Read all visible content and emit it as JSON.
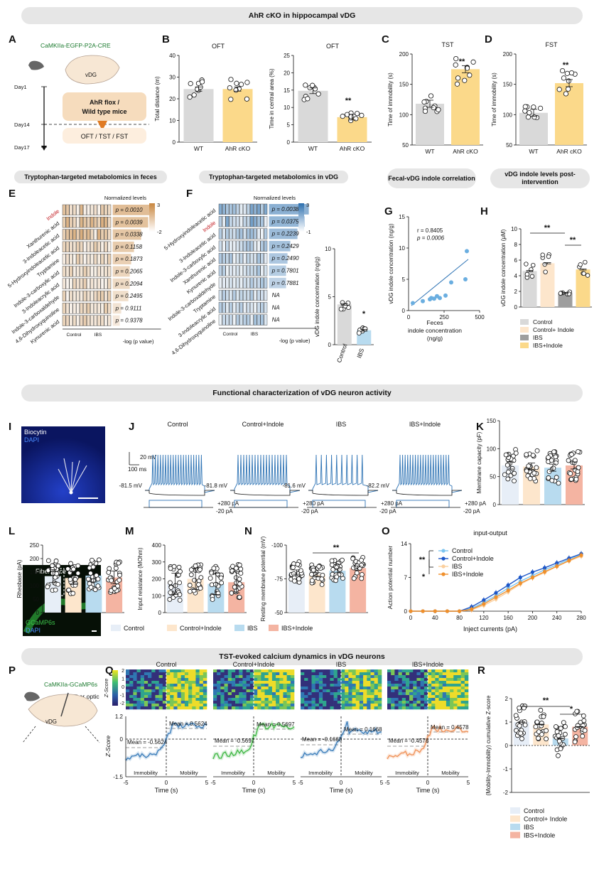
{
  "banners": {
    "b1": "AhR cKO in hippocampal vDG",
    "b2": "Functional characterization of vDG neuron activity",
    "b3": "TST-evoked calcium dynamics in vDG neurons"
  },
  "pills": {
    "e": "Tryptophan-targeted metabolomics in feces",
    "f": "Tryptophan-targeted metabolomics in vDG",
    "g": "Fecal-vDG indole correlation",
    "h": "vDG indole levels post-intervention"
  },
  "panel_labels": [
    "A",
    "B",
    "C",
    "D",
    "E",
    "F",
    "G",
    "H",
    "I",
    "J",
    "K",
    "L",
    "M",
    "N",
    "O",
    "P",
    "Q",
    "R"
  ],
  "panel_a": {
    "construct": "CaMKIIa-EGFP-P2A-CRE",
    "region": "vDG",
    "day1": "Day1",
    "day14": "Day14",
    "day17": "Day17",
    "box1_line1": "AhR flox /",
    "box1_line2": "Wild type mice",
    "box2": "OFT / TST / FST"
  },
  "panel_p": {
    "construct": "CaMKIIa-GCaMP6s",
    "fiber": "Fiber optic",
    "region": "vDG",
    "trace": "Fiber trace",
    "stain1": "GCaMP6s",
    "stain2": "DAPI"
  },
  "panel_i": {
    "stain1": "Biocytin",
    "stain2": "DAPI"
  },
  "colors": {
    "control": "#d9d9d9",
    "ahr": "#fbd98a",
    "ctrl_light": "#e7eef7",
    "ctrl_indole": "#fde6cc",
    "ibs": "#b8dbef",
    "ibs_indole": "#f4b4a2",
    "blue": "#2f74b5",
    "orange": "#e8892e",
    "feces_heat": "#c8873f",
    "vdg_heat": "#2c6fae"
  },
  "chart_data": [
    {
      "id": "B1",
      "type": "bar",
      "title": "OFT",
      "ylabel": "Total distance (m)",
      "ylim": [
        0,
        40
      ],
      "ticks": [
        0,
        10,
        20,
        30,
        40
      ],
      "categories": [
        "WT",
        "AhR cKO"
      ],
      "values": [
        24.5,
        24.5
      ],
      "sig": ""
    },
    {
      "id": "B2",
      "type": "bar",
      "title": "OFT",
      "ylabel": "Time in central area (%)",
      "ylim": [
        0,
        25
      ],
      "ticks": [
        0,
        5,
        10,
        15,
        20,
        25
      ],
      "categories": [
        "WT",
        "AhR cKO"
      ],
      "values": [
        14.8,
        7.2
      ],
      "sig": "**"
    },
    {
      "id": "C",
      "type": "bar",
      "title": "TST",
      "ylabel": "Time of immobility (s)",
      "ylim": [
        50,
        200
      ],
      "ticks": [
        50,
        100,
        150,
        200
      ],
      "categories": [
        "WT",
        "AhR cKO"
      ],
      "values": [
        118,
        175
      ],
      "sig": "**"
    },
    {
      "id": "D",
      "type": "bar",
      "title": "FST",
      "ylabel": "Time of immobility (s)",
      "ylim": [
        50,
        200
      ],
      "ticks": [
        50,
        100,
        150,
        200
      ],
      "categories": [
        "WT",
        "AhR cKO"
      ],
      "values": [
        103,
        152
      ],
      "sig": "**"
    },
    {
      "id": "E",
      "type": "heatmap",
      "colorbar_title": "Normalized levels",
      "colorbar_max": "3",
      "colorbar_min": "-2",
      "rows": [
        "Indole",
        "Xanthurenic acid",
        "3-Indoleacetic acid",
        "5-Hydroxyindoleacetic acid",
        "Tryptamine",
        "Indole-3-carboxylic acid",
        "3-Indoleacrylic acid",
        "Indole-3-carboxaldehyde",
        "4,6-Dihydroxyquinoline",
        "Kynurenic acid"
      ],
      "pvalues": [
        "p = 0.0010",
        "p = 0.0039",
        "p = 0.0338",
        "p = 0.1158",
        "p = 0.1873",
        "p = 0.2065",
        "p = 0.2094",
        "p = 0.2495",
        "p = 0.9111",
        "p = 0.9378"
      ],
      "xlabel": "-log (p value)",
      "groups": [
        "Control",
        "IBS"
      ]
    },
    {
      "id": "F",
      "type": "heatmap",
      "colorbar_title": "Normalized levels",
      "colorbar_max": "3",
      "colorbar_min": "-1",
      "rows": [
        "5-Hydroxyindoleacetic acid",
        "Indole",
        "3-Indoleacetic acid",
        "Indole-3-carboxylic acid",
        "Xanthurenic acid",
        "Kynurenic acid",
        "Indole-3-carboxaldehyde",
        "Tryptamine",
        "3-Indoleacrylic acid",
        "4,6-Dihydroxyquinoline"
      ],
      "pvalues": [
        "p = 0.0038",
        "p = 0.0375",
        "p = 0.2239",
        "p = 0.2429",
        "p = 0.2490",
        "p = 0.7801",
        "p = 0.7881",
        "NA",
        "NA",
        "NA"
      ],
      "xlabel": "-log (p value)",
      "groups": [
        "Control",
        "IBS"
      ]
    },
    {
      "id": "F2",
      "type": "bar",
      "ylabel": "vDG indole concentration (ng/g)",
      "ylim": [
        0,
        10
      ],
      "ticks": [
        0,
        5,
        10
      ],
      "categories": [
        "Control",
        "IBS"
      ],
      "values": [
        4.2,
        1.5
      ],
      "sig": "*"
    },
    {
      "id": "G",
      "type": "scatter",
      "ylabel": "vDG indole concentration (ng/g)",
      "xlabel": "Feces indole concentration (ng/g)",
      "xlim": [
        0,
        500
      ],
      "ylim": [
        0,
        15
      ],
      "xticks": [
        250,
        500
      ],
      "xticklabels": [
        "250",
        "500"
      ],
      "yticks": [
        0,
        5,
        10,
        15
      ],
      "extra_xtick": "0",
      "annotation1": "r = 0.8405",
      "annotation2": "p = 0.0006",
      "x": [
        30,
        100,
        150,
        160,
        180,
        200,
        220,
        260,
        300,
        400,
        410
      ],
      "y": [
        1.2,
        1.5,
        1.8,
        2.0,
        1.9,
        2.3,
        2.0,
        2.4,
        4.5,
        5.0,
        9.5
      ]
    },
    {
      "id": "H",
      "type": "bar",
      "ylabel": "vDG indole concentration (μM)",
      "ylim": [
        0,
        10
      ],
      "ticks": [
        0,
        2,
        4,
        6,
        8,
        10
      ],
      "categories": [
        "Control",
        "Control+ Indole",
        "IBS",
        "IBS+Indole"
      ],
      "values": [
        4.6,
        5.6,
        1.8,
        4.8
      ],
      "sig1": "**",
      "sig2": "**"
    },
    {
      "id": "K",
      "type": "bar",
      "ylabel": "Membrane capacity (pF)",
      "ylim": [
        0,
        150
      ],
      "ticks": [
        0,
        50,
        100,
        150
      ],
      "categories": [
        "Control",
        "Control+Indole",
        "IBS",
        "IBS+Indole"
      ],
      "values": [
        70,
        68,
        66,
        70
      ]
    },
    {
      "id": "L",
      "type": "bar",
      "ylabel": "Rheobase (pA)",
      "ylim": [
        0,
        250
      ],
      "ticks": [
        0,
        50,
        100,
        150,
        200,
        250
      ],
      "categories": [
        "Control",
        "Control+Indole",
        "IBS",
        "IBS+Indole"
      ],
      "values": [
        135,
        128,
        137,
        130
      ]
    },
    {
      "id": "M",
      "type": "bar",
      "ylabel": "Input resistance (MOhm)",
      "ylim": [
        0,
        400
      ],
      "ticks": [
        0,
        100,
        200,
        300,
        400
      ],
      "categories": [
        "Control",
        "Control+Indole",
        "IBS",
        "IBS+Indole"
      ],
      "values": [
        170,
        200,
        170,
        180
      ]
    },
    {
      "id": "N",
      "type": "bar",
      "ylabel": "Resting membrane potential (mV)",
      "ylim": [
        -50,
        -100
      ],
      "ticks": [
        -50,
        -75,
        -100
      ],
      "categories": [
        "Control",
        "Control+Indole",
        "IBS",
        "IBS+Indole"
      ],
      "values": [
        -80,
        -78,
        -81,
        -83
      ],
      "sig": "**"
    },
    {
      "id": "O",
      "type": "line",
      "title": "input-output",
      "ylabel": "Action potential number",
      "xlabel": "Inject currents (pA)",
      "xlim": [
        0,
        280
      ],
      "ylim": [
        0,
        14
      ],
      "xticks": [
        0,
        40,
        80,
        120,
        160,
        200,
        240,
        280
      ],
      "yticks": [
        0,
        7,
        14
      ],
      "x": [
        0,
        20,
        40,
        60,
        80,
        100,
        120,
        140,
        160,
        180,
        200,
        220,
        240,
        260,
        280
      ],
      "series": [
        {
          "name": "Control",
          "values": [
            0,
            0,
            0,
            0,
            0,
            0.6,
            1.8,
            3.2,
            4.8,
            6.2,
            7.4,
            8.6,
            9.6,
            10.8,
            11.8
          ]
        },
        {
          "name": "Control+Indole",
          "values": [
            0,
            0,
            0,
            0,
            0,
            0.9,
            2.3,
            3.8,
            5.4,
            7.0,
            8.1,
            9.0,
            10.0,
            11.0,
            11.9
          ]
        },
        {
          "name": "IBS",
          "values": [
            0,
            0,
            0,
            0,
            0,
            0.3,
            1.2,
            2.5,
            4.0,
            5.6,
            6.9,
            8.0,
            9.3,
            10.4,
            11.4
          ]
        },
        {
          "name": "IBS+Indole",
          "values": [
            0,
            0,
            0,
            0,
            0,
            0.4,
            1.5,
            2.9,
            4.3,
            5.8,
            7.0,
            8.2,
            9.3,
            10.5,
            11.6
          ]
        }
      ],
      "sig1": "**",
      "sig2": "*"
    },
    {
      "id": "Q",
      "type": "line",
      "titles": [
        "Control",
        "Control+Indole",
        "IBS",
        "IBS+Indole"
      ],
      "ylabel": "Z-Score",
      "colorbar_label": "Z-Score",
      "colorbar_ticks": [
        "2",
        "1",
        "0",
        "-1",
        "-2"
      ],
      "xlabel": "Time (s)",
      "xlim": [
        -5,
        5
      ],
      "ylim": [
        -1.5,
        1.2
      ],
      "xticks": [
        -5,
        0,
        5
      ],
      "yticks": [
        -1.5,
        0,
        1.2
      ],
      "means": [
        {
          "pre": "Mean = -0.5624",
          "post": "Mean = 0.5624"
        },
        {
          "pre": "Mean = -0.5697",
          "post": "Mean = 0.5697"
        },
        {
          "pre": "Mean = -0.1668",
          "post": "Mean = 0.1668"
        },
        {
          "pre": "Mean = -0.4578",
          "post": "Mean = 0.4578"
        }
      ],
      "immobility": "Immobility",
      "mobility": "Mobility"
    },
    {
      "id": "R",
      "type": "bar",
      "ylabel": "(Mobility-Immobility) cumulative Z-score",
      "ylim": [
        -2,
        2
      ],
      "ticks": [
        -2,
        -1,
        0,
        1,
        2
      ],
      "categories": [
        "Control",
        "Control+ Indole",
        "IBS",
        "IBS+Indole"
      ],
      "values": [
        1.0,
        0.9,
        0.3,
        0.8
      ],
      "sig1": "**",
      "sig2": "*"
    }
  ],
  "panel_j": {
    "titles": [
      "Control",
      "Control+Indole",
      "IBS",
      "IBS+Indole"
    ],
    "vms": [
      "-81.5 mV",
      "-81.8 mV",
      "-81.6 mV",
      "-82.2 mV"
    ],
    "scale_v": "20 mV",
    "scale_t": "100 ms",
    "pos_pa": "+280 pA",
    "neg_pa": "-20 pA"
  },
  "legend_l": [
    "Control",
    "Control+Indole",
    "IBS",
    "IBS+Indole"
  ],
  "legend_r": [
    "Control",
    "Control+ Indole",
    "IBS",
    "IBS+Indole"
  ]
}
